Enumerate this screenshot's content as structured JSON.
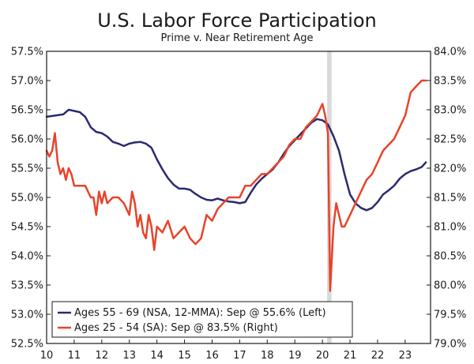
{
  "chart_data": {
    "type": "line",
    "title": "U.S. Labor Force Participation",
    "subtitle": "Prime v. Near Retirement Age",
    "x_tick_labels": [
      "10",
      "11",
      "12",
      "13",
      "14",
      "15",
      "16",
      "17",
      "18",
      "19",
      "20",
      "21",
      "22",
      "23"
    ],
    "x_range": [
      2010.0,
      2023.92
    ],
    "y_left": {
      "range": [
        52.5,
        57.5
      ],
      "ticks": [
        52.5,
        53.0,
        53.5,
        54.0,
        54.5,
        55.0,
        55.5,
        56.0,
        56.5,
        57.0,
        57.5
      ],
      "tick_labels": [
        "52.5%",
        "53.0%",
        "53.5%",
        "54.0%",
        "54.5%",
        "55.0%",
        "55.5%",
        "56.0%",
        "56.5%",
        "57.0%",
        "57.5%"
      ]
    },
    "y_right": {
      "range": [
        79.0,
        84.0
      ],
      "ticks": [
        79.0,
        79.5,
        80.0,
        80.5,
        81.0,
        81.5,
        82.0,
        82.5,
        83.0,
        83.5,
        84.0
      ],
      "tick_labels": [
        "79.0%",
        "79.5%",
        "80.0%",
        "80.5%",
        "81.0%",
        "81.5%",
        "82.0%",
        "82.5%",
        "83.0%",
        "83.5%",
        "84.0%"
      ]
    },
    "recession_shading": [
      {
        "start": 2020.17,
        "end": 2020.33,
        "color": "#d9d9d9"
      }
    ],
    "grid": false,
    "legend": {
      "position": "bottom-left",
      "entries": [
        {
          "label": "Ages 55 - 69 (NSA, 12-MMA): Sep @ 55.6% (Left)",
          "color": "#2b2a6e"
        },
        {
          "label": "Ages 25 - 54 (SA): Sep @ 83.5% (Right)",
          "color": "#e8432a"
        }
      ]
    },
    "series": [
      {
        "name": "Ages 55 - 69 (NSA, 12-MMA): Sep @ 55.6% (Left)",
        "axis": "left",
        "color": "#2b2a6e",
        "points": [
          [
            2010.0,
            56.38
          ],
          [
            2010.3,
            56.4
          ],
          [
            2010.6,
            56.42
          ],
          [
            2010.8,
            56.5
          ],
          [
            2011.0,
            56.48
          ],
          [
            2011.2,
            56.46
          ],
          [
            2011.4,
            56.38
          ],
          [
            2011.6,
            56.2
          ],
          [
            2011.8,
            56.12
          ],
          [
            2012.0,
            56.1
          ],
          [
            2012.2,
            56.04
          ],
          [
            2012.4,
            55.95
          ],
          [
            2012.6,
            55.92
          ],
          [
            2012.8,
            55.88
          ],
          [
            2013.0,
            55.92
          ],
          [
            2013.2,
            55.94
          ],
          [
            2013.4,
            55.95
          ],
          [
            2013.6,
            55.92
          ],
          [
            2013.8,
            55.85
          ],
          [
            2014.0,
            55.65
          ],
          [
            2014.2,
            55.48
          ],
          [
            2014.4,
            55.33
          ],
          [
            2014.6,
            55.22
          ],
          [
            2014.8,
            55.15
          ],
          [
            2015.0,
            55.15
          ],
          [
            2015.2,
            55.13
          ],
          [
            2015.4,
            55.06
          ],
          [
            2015.6,
            55.0
          ],
          [
            2015.8,
            54.96
          ],
          [
            2016.0,
            54.95
          ],
          [
            2016.2,
            54.98
          ],
          [
            2016.4,
            54.95
          ],
          [
            2016.6,
            54.93
          ],
          [
            2016.8,
            54.92
          ],
          [
            2017.0,
            54.9
          ],
          [
            2017.2,
            54.92
          ],
          [
            2017.4,
            55.08
          ],
          [
            2017.6,
            55.22
          ],
          [
            2017.8,
            55.32
          ],
          [
            2018.0,
            55.4
          ],
          [
            2018.2,
            55.48
          ],
          [
            2018.4,
            55.6
          ],
          [
            2018.6,
            55.75
          ],
          [
            2018.8,
            55.88
          ],
          [
            2019.0,
            55.98
          ],
          [
            2019.2,
            56.08
          ],
          [
            2019.4,
            56.18
          ],
          [
            2019.6,
            56.28
          ],
          [
            2019.8,
            56.34
          ],
          [
            2020.0,
            56.32
          ],
          [
            2020.2,
            56.25
          ],
          [
            2020.4,
            56.05
          ],
          [
            2020.6,
            55.8
          ],
          [
            2020.8,
            55.4
          ],
          [
            2021.0,
            55.05
          ],
          [
            2021.2,
            54.9
          ],
          [
            2021.4,
            54.82
          ],
          [
            2021.6,
            54.78
          ],
          [
            2021.8,
            54.82
          ],
          [
            2022.0,
            54.92
          ],
          [
            2022.2,
            55.05
          ],
          [
            2022.4,
            55.12
          ],
          [
            2022.6,
            55.2
          ],
          [
            2022.8,
            55.32
          ],
          [
            2023.0,
            55.4
          ],
          [
            2023.2,
            55.45
          ],
          [
            2023.4,
            55.48
          ],
          [
            2023.6,
            55.52
          ],
          [
            2023.75,
            55.6
          ]
        ]
      },
      {
        "name": "Ages 25 - 54 (SA): Sep @ 83.5% (Right)",
        "axis": "right",
        "color": "#e8432a",
        "points": [
          [
            2010.0,
            82.3
          ],
          [
            2010.1,
            82.2
          ],
          [
            2010.2,
            82.3
          ],
          [
            2010.3,
            82.6
          ],
          [
            2010.4,
            82.1
          ],
          [
            2010.5,
            81.9
          ],
          [
            2010.6,
            82.0
          ],
          [
            2010.7,
            81.8
          ],
          [
            2010.8,
            82.0
          ],
          [
            2010.9,
            81.9
          ],
          [
            2011.0,
            81.7
          ],
          [
            2011.2,
            81.7
          ],
          [
            2011.4,
            81.7
          ],
          [
            2011.6,
            81.5
          ],
          [
            2011.7,
            81.5
          ],
          [
            2011.8,
            81.2
          ],
          [
            2011.9,
            81.6
          ],
          [
            2012.0,
            81.4
          ],
          [
            2012.1,
            81.6
          ],
          [
            2012.2,
            81.4
          ],
          [
            2012.4,
            81.5
          ],
          [
            2012.6,
            81.5
          ],
          [
            2012.8,
            81.4
          ],
          [
            2013.0,
            81.2
          ],
          [
            2013.1,
            81.6
          ],
          [
            2013.2,
            81.4
          ],
          [
            2013.3,
            81.0
          ],
          [
            2013.4,
            81.2
          ],
          [
            2013.5,
            80.9
          ],
          [
            2013.6,
            80.8
          ],
          [
            2013.7,
            81.2
          ],
          [
            2013.8,
            81.0
          ],
          [
            2013.9,
            80.6
          ],
          [
            2014.0,
            81.0
          ],
          [
            2014.2,
            80.9
          ],
          [
            2014.4,
            81.1
          ],
          [
            2014.6,
            80.8
          ],
          [
            2014.8,
            80.9
          ],
          [
            2015.0,
            81.0
          ],
          [
            2015.2,
            80.8
          ],
          [
            2015.4,
            80.7
          ],
          [
            2015.6,
            80.8
          ],
          [
            2015.8,
            81.2
          ],
          [
            2016.0,
            81.1
          ],
          [
            2016.2,
            81.3
          ],
          [
            2016.4,
            81.4
          ],
          [
            2016.6,
            81.5
          ],
          [
            2016.8,
            81.5
          ],
          [
            2017.0,
            81.5
          ],
          [
            2017.2,
            81.7
          ],
          [
            2017.4,
            81.7
          ],
          [
            2017.6,
            81.8
          ],
          [
            2017.8,
            81.9
          ],
          [
            2018.0,
            81.9
          ],
          [
            2018.2,
            82.0
          ],
          [
            2018.4,
            82.1
          ],
          [
            2018.6,
            82.2
          ],
          [
            2018.8,
            82.4
          ],
          [
            2019.0,
            82.5
          ],
          [
            2019.2,
            82.5
          ],
          [
            2019.4,
            82.7
          ],
          [
            2019.6,
            82.8
          ],
          [
            2019.8,
            82.9
          ],
          [
            2020.0,
            83.1
          ],
          [
            2020.1,
            82.9
          ],
          [
            2020.2,
            82.6
          ],
          [
            2020.28,
            79.9
          ],
          [
            2020.4,
            81.0
          ],
          [
            2020.5,
            81.4
          ],
          [
            2020.6,
            81.2
          ],
          [
            2020.7,
            81.0
          ],
          [
            2020.8,
            81.0
          ],
          [
            2021.0,
            81.2
          ],
          [
            2021.2,
            81.4
          ],
          [
            2021.4,
            81.6
          ],
          [
            2021.6,
            81.8
          ],
          [
            2021.8,
            81.9
          ],
          [
            2022.0,
            82.1
          ],
          [
            2022.2,
            82.3
          ],
          [
            2022.4,
            82.4
          ],
          [
            2022.6,
            82.5
          ],
          [
            2022.8,
            82.7
          ],
          [
            2023.0,
            82.9
          ],
          [
            2023.2,
            83.3
          ],
          [
            2023.4,
            83.4
          ],
          [
            2023.6,
            83.5
          ],
          [
            2023.75,
            83.5
          ]
        ]
      }
    ]
  }
}
